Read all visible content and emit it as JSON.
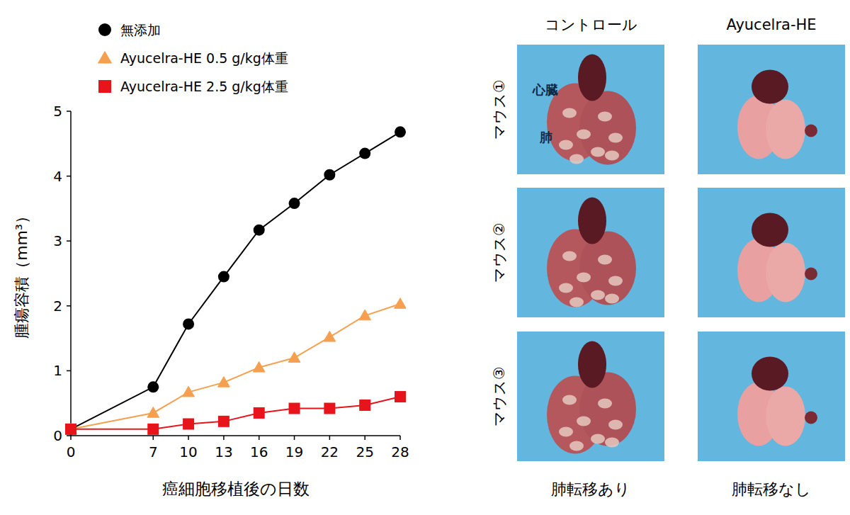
{
  "chart_data": {
    "type": "line",
    "x_label": "癌細胞移植後の日数",
    "y_label": "腫瘍容積（mm³）",
    "x": [
      0,
      7,
      10,
      13,
      16,
      19,
      22,
      25,
      28
    ],
    "xlim": [
      0,
      28
    ],
    "xticks": [
      0,
      7,
      10,
      13,
      16,
      19,
      22,
      25,
      28
    ],
    "ylim": [
      0,
      5
    ],
    "yticks": [
      0,
      1,
      2,
      3,
      4,
      5
    ],
    "grid": false,
    "legend": "top-left",
    "series": [
      {
        "name": "無添加",
        "color": "#000000",
        "marker": "circle",
        "values": [
          0.1,
          0.75,
          1.72,
          2.45,
          3.17,
          3.58,
          4.02,
          4.35,
          4.68
        ]
      },
      {
        "name": "Ayucelra-HE 0.5 g/kg体重",
        "color": "#f5a050",
        "marker": "triangle",
        "values": [
          0.1,
          0.35,
          0.67,
          0.82,
          1.05,
          1.2,
          1.52,
          1.85,
          2.03
        ]
      },
      {
        "name": "Ayucelra-HE 2.5 g/kg体重",
        "color": "#e8141b",
        "marker": "square",
        "values": [
          0.1,
          0.1,
          0.18,
          0.22,
          0.35,
          0.42,
          0.42,
          0.47,
          0.6
        ]
      }
    ]
  },
  "figure_panel": {
    "columns": [
      "コントロール",
      "Ayucelra-HE"
    ],
    "rows": [
      "マウス①",
      "マウス②",
      "マウス③"
    ],
    "organ_labels": [
      "心臓",
      "肺"
    ],
    "captions": [
      "肺転移あり",
      "肺転移なし"
    ]
  }
}
